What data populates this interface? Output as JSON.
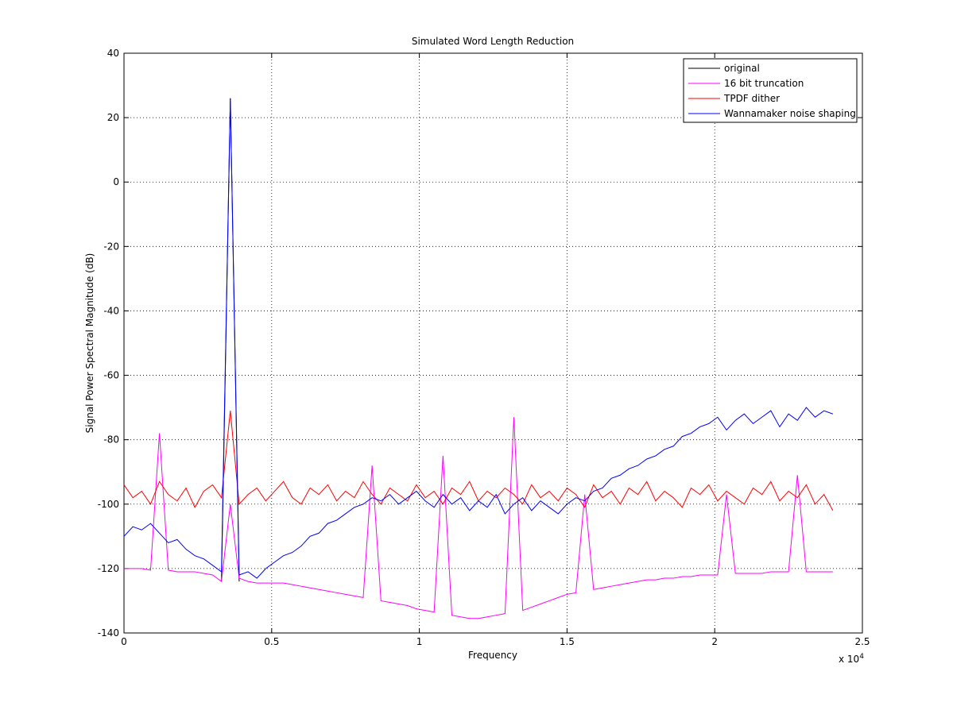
{
  "chart_data": {
    "type": "line",
    "title": "Simulated Word Length Reduction",
    "xlabel": "Frequency",
    "ylabel": "Signal Power Spectral Magnitude (dB)",
    "x_multiplier": "x 10",
    "x_multiplier_exp": "4",
    "x": [
      0,
      300,
      600,
      900,
      1200,
      1500,
      1800,
      2100,
      2400,
      2700,
      3000,
      3300,
      3600,
      3900,
      4200,
      4500,
      4800,
      5100,
      5400,
      5700,
      6000,
      6300,
      6600,
      6900,
      7200,
      7500,
      7800,
      8100,
      8400,
      8700,
      9000,
      9300,
      9600,
      9900,
      10200,
      10500,
      10800,
      11100,
      11400,
      11700,
      12000,
      12300,
      12600,
      12900,
      13200,
      13500,
      13800,
      14100,
      14400,
      14700,
      15000,
      15300,
      15600,
      15900,
      16200,
      16500,
      16800,
      17100,
      17400,
      17700,
      18000,
      18300,
      18600,
      18900,
      19200,
      19500,
      19800,
      20100,
      20400,
      20700,
      21000,
      21300,
      21600,
      21900,
      22200,
      22500,
      22800,
      23100,
      23400,
      23700,
      24000
    ],
    "series": [
      {
        "name": "original",
        "color": "#000000",
        "values": [
          null,
          null,
          null,
          null,
          null,
          null,
          null,
          null,
          null,
          null,
          null,
          -124,
          26,
          -124,
          null,
          null,
          null,
          null,
          null,
          null,
          null,
          null,
          null,
          null,
          null,
          null,
          null,
          null,
          null,
          null,
          null,
          null,
          null,
          null,
          null,
          null,
          null,
          null,
          null,
          null,
          null,
          null,
          null,
          null,
          null,
          null,
          null,
          null,
          null,
          null,
          null,
          null,
          null,
          null,
          null,
          null,
          null,
          null,
          null,
          null,
          null,
          null,
          null,
          null,
          null,
          null,
          null,
          null,
          null,
          null,
          null,
          null,
          null,
          null,
          null,
          null,
          null,
          null,
          null,
          null,
          null
        ]
      },
      {
        "name": "16 bit truncation",
        "color": "#ff00ff",
        "values": [
          -120,
          -120,
          -120,
          -120.5,
          -78,
          -120.5,
          -121,
          -121,
          -121,
          -121.5,
          -122,
          -124,
          -100,
          -123,
          -124,
          -124.5,
          -124.5,
          -124.5,
          -124.5,
          -125,
          -125.5,
          -126,
          -126.5,
          -127,
          -127.5,
          -128,
          -128.5,
          -129,
          -88,
          -130,
          -130.5,
          -131,
          -131.5,
          -132.5,
          -133,
          -133.5,
          -85,
          -134.5,
          -135,
          -135.5,
          -135.5,
          -135,
          -134.5,
          -134,
          -73,
          -133,
          -132,
          -131,
          -130,
          -129,
          -128,
          -127.5,
          -97,
          -126.5,
          -126,
          -125.5,
          -125,
          -124.5,
          -124,
          -123.5,
          -123.5,
          -123,
          -123,
          -122.5,
          -122.5,
          -122,
          -122,
          -122,
          -97,
          -121.5,
          -121.5,
          -121.5,
          -121.5,
          -121,
          -121,
          -121,
          -91,
          -121,
          -121,
          -121,
          -121
        ]
      },
      {
        "name": "TPDF dither",
        "color": "#ff0000",
        "values": [
          -94,
          -98,
          -96,
          -100,
          -93,
          -97,
          -99,
          -95,
          -101,
          -96,
          -94,
          -98,
          -71,
          -100,
          -97,
          -95,
          -99,
          -96,
          -93,
          -98,
          -100,
          -95,
          -97,
          -94,
          -99,
          -96,
          -98,
          -93,
          -97,
          -100,
          -95,
          -97,
          -99,
          -94,
          -98,
          -96,
          -100,
          -95,
          -97,
          -93,
          -99,
          -96,
          -98,
          -95,
          -97,
          -100,
          -94,
          -98,
          -96,
          -99,
          -95,
          -97,
          -101,
          -94,
          -98,
          -96,
          -100,
          -95,
          -97,
          -93,
          -99,
          -96,
          -98,
          -101,
          -95,
          -97,
          -94,
          -99,
          -96,
          -98,
          -100,
          -95,
          -97,
          -93,
          -99,
          -96,
          -98,
          -94,
          -100,
          -97,
          -102
        ]
      },
      {
        "name": "Wannamaker noise shaping",
        "color": "#0000ff",
        "values": [
          -110,
          -107,
          -108,
          -106,
          -109,
          -112,
          -111,
          -114,
          -116,
          -117,
          -119,
          -121,
          26,
          -122,
          -121,
          -123,
          -120,
          -118,
          -116,
          -115,
          -113,
          -110,
          -109,
          -106,
          -105,
          -103,
          -101,
          -100,
          -98,
          -99,
          -97,
          -100,
          -98,
          -96,
          -99,
          -101,
          -97,
          -100,
          -98,
          -102,
          -99,
          -101,
          -97,
          -103,
          -100,
          -98,
          -102,
          -99,
          -101,
          -103,
          -100,
          -98,
          -99,
          -96,
          -95,
          -92,
          -91,
          -89,
          -88,
          -86,
          -85,
          -83,
          -82,
          -79,
          -78,
          -76,
          -75,
          -73,
          -77,
          -74,
          -72,
          -75,
          -73,
          -71,
          -76,
          -72,
          -74,
          -70,
          -73,
          -71,
          -72
        ]
      }
    ],
    "xlim": [
      0,
      25000
    ],
    "xticks": [
      0,
      {
        "value": 5000,
        "label": "0.5"
      },
      {
        "value": 10000,
        "label": "1"
      },
      {
        "value": 15000,
        "label": "1.5"
      },
      {
        "value": 20000,
        "label": "2"
      },
      {
        "value": 25000,
        "label": "2.5"
      }
    ],
    "ylim": [
      -140,
      40
    ],
    "yticks": [
      -140,
      -120,
      -100,
      -80,
      -60,
      -40,
      -20,
      0,
      20,
      40
    ],
    "grid": true,
    "legend": "upper right"
  }
}
